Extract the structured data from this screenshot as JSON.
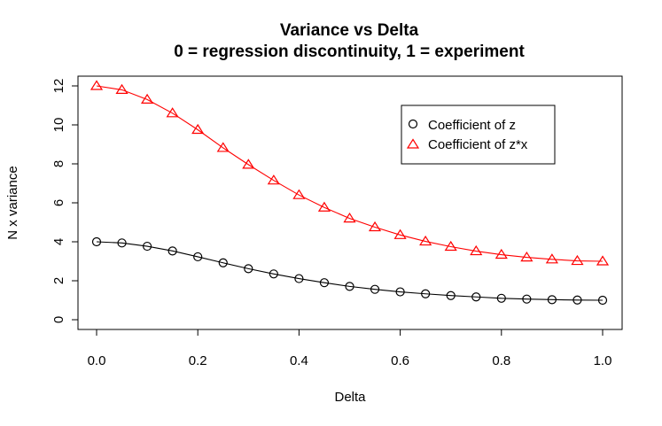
{
  "chart_data": {
    "type": "line",
    "title": "Variance vs Delta",
    "subtitle": "0 = regression discontinuity, 1 = experiment",
    "xlabel": "Delta",
    "ylabel": "N x variance",
    "xlim": [
      0,
      1
    ],
    "ylim": [
      0,
      12
    ],
    "xticks": [
      "0.0",
      "0.2",
      "0.4",
      "0.6",
      "0.8",
      "1.0"
    ],
    "yticks": [
      "0",
      "2",
      "4",
      "6",
      "8",
      "10",
      "12"
    ],
    "grid": false,
    "legend_position": "top-right",
    "x": [
      0.0,
      0.05,
      0.1,
      0.15,
      0.2,
      0.25,
      0.3,
      0.35,
      0.4,
      0.45,
      0.5,
      0.55,
      0.6,
      0.65,
      0.7,
      0.75,
      0.8,
      0.85,
      0.9,
      0.95,
      1.0
    ],
    "series": [
      {
        "name": "Coefficient of z",
        "color": "#000000",
        "marker": "circle",
        "values": [
          4.0,
          3.94,
          3.77,
          3.53,
          3.23,
          2.92,
          2.62,
          2.35,
          2.11,
          1.9,
          1.71,
          1.56,
          1.43,
          1.33,
          1.24,
          1.17,
          1.1,
          1.06,
          1.03,
          1.01,
          1.0
        ]
      },
      {
        "name": "Coefficient of z*x",
        "color": "#ff0000",
        "marker": "triangle",
        "values": [
          12.0,
          11.8,
          11.3,
          10.6,
          9.75,
          8.82,
          7.96,
          7.15,
          6.4,
          5.76,
          5.2,
          4.75,
          4.35,
          4.02,
          3.75,
          3.52,
          3.34,
          3.2,
          3.1,
          3.02,
          3.0
        ]
      }
    ]
  }
}
